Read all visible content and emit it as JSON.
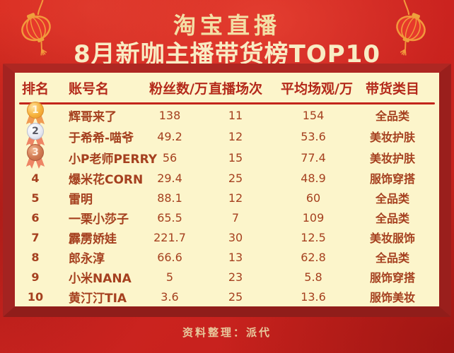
{
  "page": {
    "title_line1": "淘宝直播",
    "title_line2": "8月新咖主播带货榜TOP10",
    "footer_note": "资料整理：派代"
  },
  "palette": {
    "background_red": "#cd2420",
    "frame_red": "#a42321",
    "panel_cream": "#fcf5cb",
    "header_text_red": "#b4291a",
    "cell_text_red": "#a5401f",
    "divider_red": "#c3251b",
    "title_gold": "#f3dfa6",
    "footer_tan": "#e8c89c",
    "medal_gold": "#f6b23c",
    "medal_silver": "#e9ebf3",
    "medal_bronze": "#d07a52",
    "ribbon_salmon": "#ee8565",
    "lantern_outline_orange": "#f2993c"
  },
  "icons": {
    "decorations": [
      "red-lantern-icon",
      "red-lantern-icon"
    ],
    "rank_medals": [
      "gold-medal-icon",
      "silver-medal-icon",
      "bronze-medal-icon"
    ]
  },
  "chart_data": {
    "type": "table",
    "title": "淘宝直播",
    "subtitle": "8月新咖主播带货榜TOP10",
    "source_note": "资料整理：派代",
    "columns": [
      "排名",
      "账号名",
      "粉丝数/万",
      "直播场次",
      "平均场观/万",
      "带货类目"
    ],
    "rows": [
      {
        "rank": "1",
        "medal": "gold",
        "name": "辉哥来了",
        "fans": "138",
        "sessions": "11",
        "avg_view": "154",
        "category": "全品类"
      },
      {
        "rank": "2",
        "medal": "silver",
        "name": "于希希-喵爷",
        "fans": "49.2",
        "sessions": "12",
        "avg_view": "53.6",
        "category": "美妆护肤"
      },
      {
        "rank": "3",
        "medal": "bronze",
        "name": "小P老师PERRY",
        "fans": "56",
        "sessions": "15",
        "avg_view": "77.4",
        "category": "美妆护肤"
      },
      {
        "rank": "4",
        "medal": null,
        "name": "爆米花CORN",
        "fans": "29.4",
        "sessions": "25",
        "avg_view": "48.9",
        "category": "服饰穿搭"
      },
      {
        "rank": "5",
        "medal": null,
        "name": "雷明",
        "fans": "88.1",
        "sessions": "12",
        "avg_view": "60",
        "category": "全品类"
      },
      {
        "rank": "6",
        "medal": null,
        "name": "一栗小莎子",
        "fans": "65.5",
        "sessions": "7",
        "avg_view": "109",
        "category": "全品类"
      },
      {
        "rank": "7",
        "medal": null,
        "name": "霹雳娇娃",
        "fans": "221.7",
        "sessions": "30",
        "avg_view": "12.5",
        "category": "美妆服饰"
      },
      {
        "rank": "8",
        "medal": null,
        "name": "郎永淳",
        "fans": "66.6",
        "sessions": "13",
        "avg_view": "62.8",
        "category": "全品类"
      },
      {
        "rank": "9",
        "medal": null,
        "name": "小米NANA",
        "fans": "5",
        "sessions": "23",
        "avg_view": "5.8",
        "category": "服饰穿搭"
      },
      {
        "rank": "10",
        "medal": null,
        "name": "黄汀汀TIA",
        "fans": "3.6",
        "sessions": "25",
        "avg_view": "13.6",
        "category": "服饰美妆"
      }
    ]
  }
}
